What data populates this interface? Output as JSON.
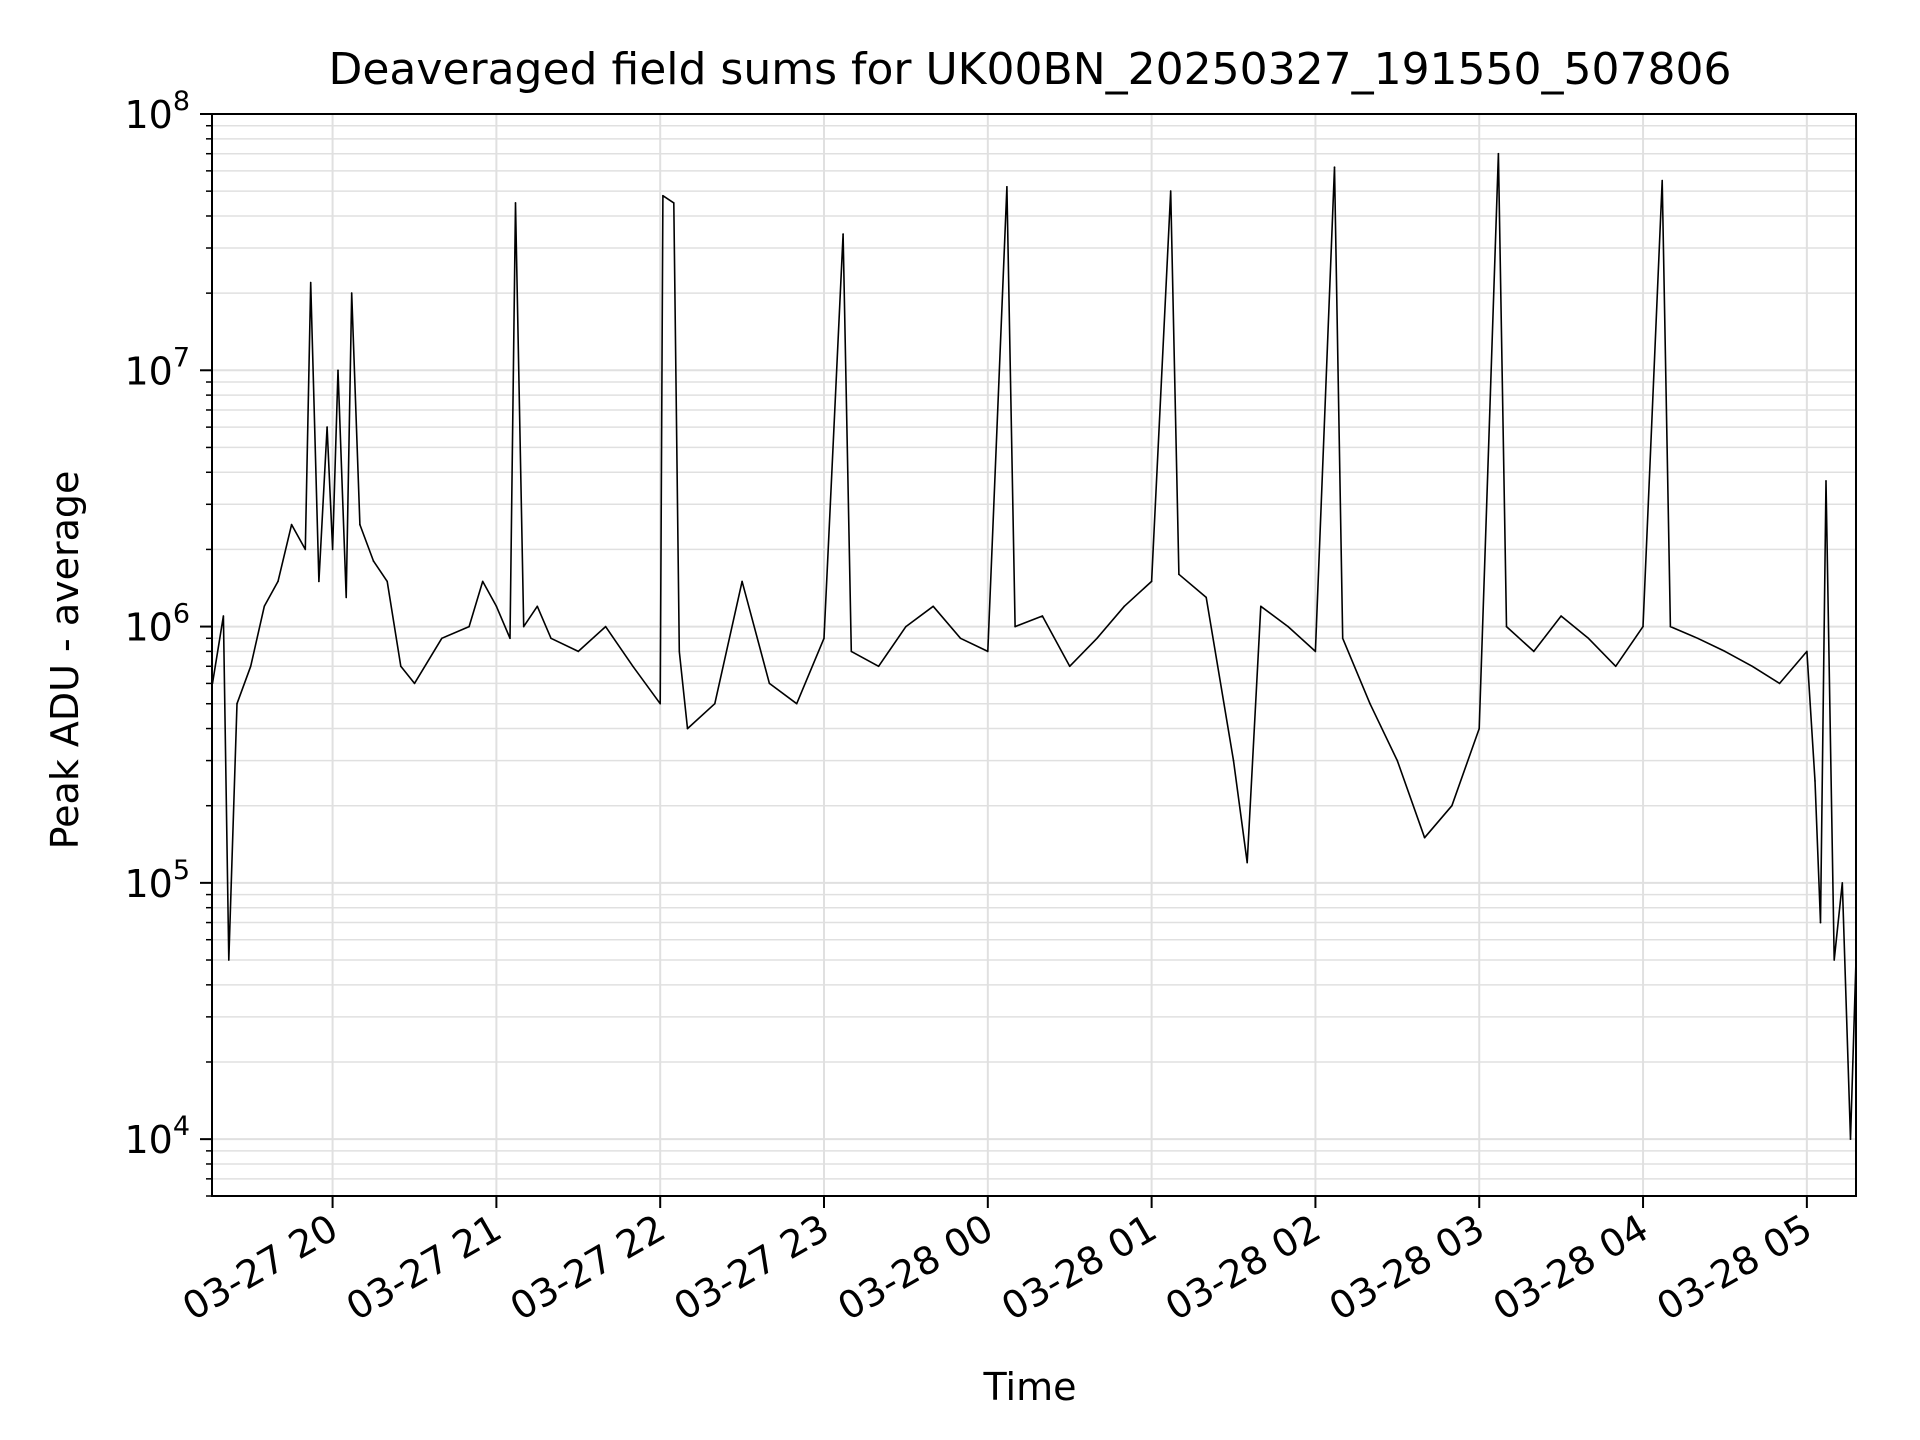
{
  "chart_data": {
    "type": "line",
    "title": "Deaveraged field sums for UK00BN_20250327_191550_507806",
    "xlabel": "Time",
    "ylabel": "Peak ADU - average",
    "yscale": "log",
    "ylim": [
      6000,
      100000000
    ],
    "xlim": [
      "2025-03-27 19:15:50",
      "2025-03-28 05:18:00"
    ],
    "grid": true,
    "legend": "none",
    "colors": {
      "line": "#000000",
      "grid": "#e0e0e0",
      "axis": "#000000"
    },
    "x_tick_labels": [
      "03-27 20",
      "03-27 21",
      "03-27 22",
      "03-27 23",
      "03-28 00",
      "03-28 01",
      "03-28 02",
      "03-28 03",
      "03-28 04",
      "03-28 05"
    ],
    "y_tick_labels": [
      {
        "base": "10",
        "exp": "4"
      },
      {
        "base": "10",
        "exp": "5"
      },
      {
        "base": "10",
        "exp": "6"
      },
      {
        "base": "10",
        "exp": "7"
      },
      {
        "base": "10",
        "exp": "8"
      }
    ],
    "series": [
      {
        "x": [
          "2025-03-27 19:16:00",
          "2025-03-27 19:20:00",
          "2025-03-27 19:22:00",
          "2025-03-27 19:25:00",
          "2025-03-27 19:30:00",
          "2025-03-27 19:35:00",
          "2025-03-27 19:40:00",
          "2025-03-27 19:45:00",
          "2025-03-27 19:50:00",
          "2025-03-27 19:52:00",
          "2025-03-27 19:55:00",
          "2025-03-27 19:58:00",
          "2025-03-27 20:00:00",
          "2025-03-27 20:02:00",
          "2025-03-27 20:05:00",
          "2025-03-27 20:07:00",
          "2025-03-27 20:10:00",
          "2025-03-27 20:15:00",
          "2025-03-27 20:20:00",
          "2025-03-27 20:25:00",
          "2025-03-27 20:30:00",
          "2025-03-27 20:40:00",
          "2025-03-27 20:50:00",
          "2025-03-27 20:55:00",
          "2025-03-27 21:00:00",
          "2025-03-27 21:05:00",
          "2025-03-27 21:07:00",
          "2025-03-27 21:10:00",
          "2025-03-27 21:15:00",
          "2025-03-27 21:20:00",
          "2025-03-27 21:30:00",
          "2025-03-27 21:40:00",
          "2025-03-27 21:50:00",
          "2025-03-27 22:00:00",
          "2025-03-27 22:01:00",
          "2025-03-27 22:05:00",
          "2025-03-27 22:07:00",
          "2025-03-27 22:10:00",
          "2025-03-27 22:20:00",
          "2025-03-27 22:30:00",
          "2025-03-27 22:40:00",
          "2025-03-27 22:50:00",
          "2025-03-27 23:00:00",
          "2025-03-27 23:07:00",
          "2025-03-27 23:10:00",
          "2025-03-27 23:20:00",
          "2025-03-27 23:30:00",
          "2025-03-27 23:40:00",
          "2025-03-27 23:50:00",
          "2025-03-28 00:00:00",
          "2025-03-28 00:07:00",
          "2025-03-28 00:10:00",
          "2025-03-28 00:20:00",
          "2025-03-28 00:30:00",
          "2025-03-28 00:40:00",
          "2025-03-28 00:50:00",
          "2025-03-28 01:00:00",
          "2025-03-28 01:07:00",
          "2025-03-28 01:10:00",
          "2025-03-28 01:20:00",
          "2025-03-28 01:30:00",
          "2025-03-28 01:35:00",
          "2025-03-28 01:40:00",
          "2025-03-28 01:50:00",
          "2025-03-28 02:00:00",
          "2025-03-28 02:07:00",
          "2025-03-28 02:10:00",
          "2025-03-28 02:20:00",
          "2025-03-28 02:30:00",
          "2025-03-28 02:40:00",
          "2025-03-28 02:50:00",
          "2025-03-28 03:00:00",
          "2025-03-28 03:07:00",
          "2025-03-28 03:10:00",
          "2025-03-28 03:20:00",
          "2025-03-28 03:30:00",
          "2025-03-28 03:40:00",
          "2025-03-28 03:50:00",
          "2025-03-28 04:00:00",
          "2025-03-28 04:07:00",
          "2025-03-28 04:10:00",
          "2025-03-28 04:20:00",
          "2025-03-28 04:30:00",
          "2025-03-28 04:40:00",
          "2025-03-28 04:50:00",
          "2025-03-28 05:00:00",
          "2025-03-28 05:03:00",
          "2025-03-28 05:05:00",
          "2025-03-28 05:07:00",
          "2025-03-28 05:10:00",
          "2025-03-28 05:13:00",
          "2025-03-28 05:16:00",
          "2025-03-28 05:18:00"
        ],
        "values": [
          600000,
          1100000,
          50000,
          500000,
          700000,
          1200000,
          1500000,
          2500000,
          2000000,
          22000000,
          1500000,
          6000000,
          2000000,
          10000000,
          1300000,
          20000000,
          2500000,
          1800000,
          1500000,
          700000,
          600000,
          900000,
          1000000,
          1500000,
          1200000,
          900000,
          45000000,
          1000000,
          1200000,
          900000,
          800000,
          1000000,
          700000,
          500000,
          48000000,
          45000000,
          800000,
          400000,
          500000,
          1500000,
          600000,
          500000,
          900000,
          34000000,
          800000,
          700000,
          1000000,
          1200000,
          900000,
          800000,
          52000000,
          1000000,
          1100000,
          700000,
          900000,
          1200000,
          1500000,
          50000000,
          1600000,
          1300000,
          300000,
          120000,
          1200000,
          1000000,
          800000,
          62000000,
          900000,
          500000,
          300000,
          150000,
          200000,
          400000,
          70000000,
          1000000,
          800000,
          1100000,
          900000,
          700000,
          1000000,
          55000000,
          1000000,
          900000,
          800000,
          700000,
          600000,
          800000,
          250000,
          70000,
          3700000,
          50000,
          100000,
          10000,
          50000
        ]
      }
    ]
  }
}
